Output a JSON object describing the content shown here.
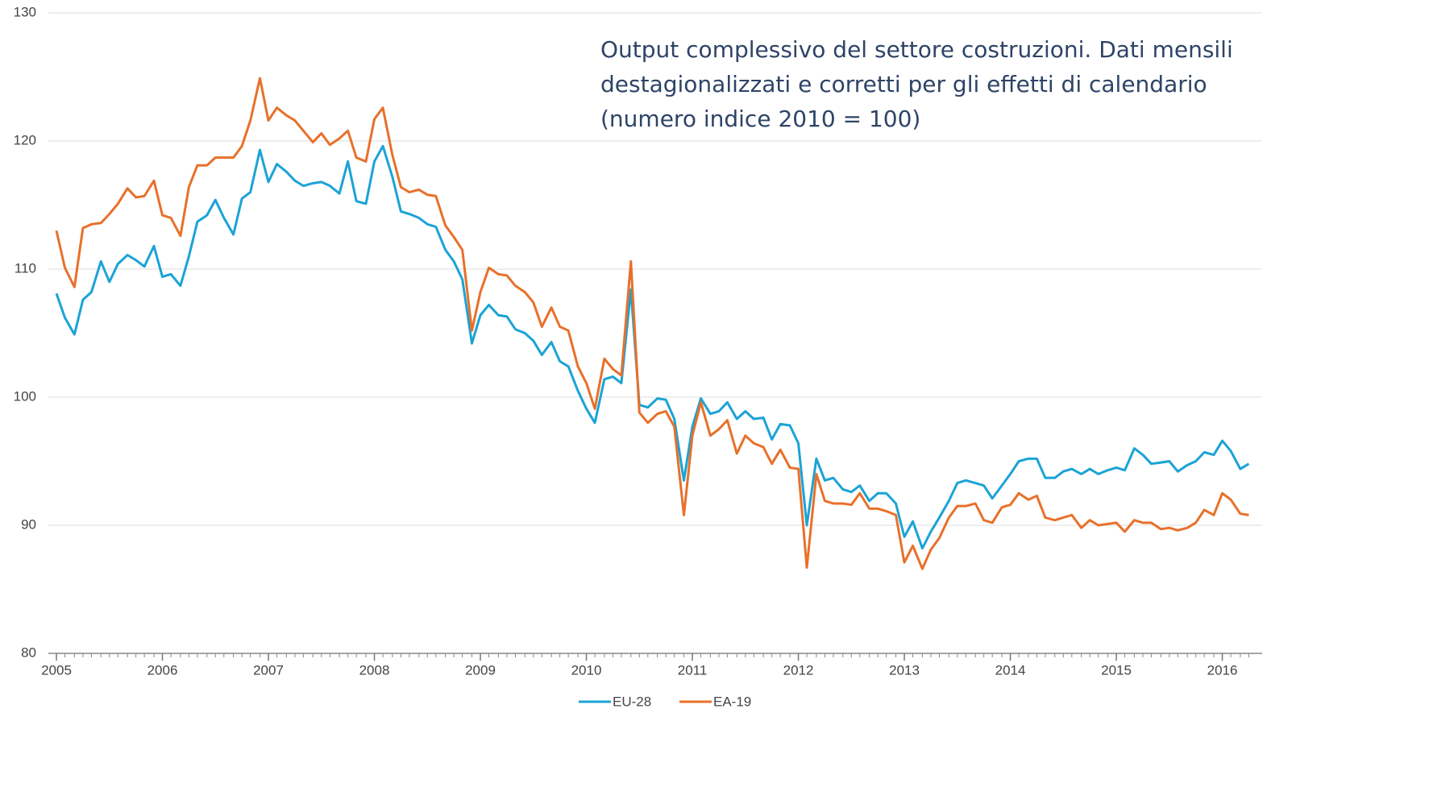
{
  "chart_data": {
    "type": "line",
    "annotation": "Output complessivo del settore costruzioni. Dati mensili destagionalizzati e corretti per gli effetti di calendario (numero indice 2010 = 100)",
    "x": [
      2005.0,
      2005.08,
      2005.17,
      2005.25,
      2005.33,
      2005.42,
      2005.5,
      2005.58,
      2005.67,
      2005.75,
      2005.83,
      2005.92,
      2006.0,
      2006.08,
      2006.17,
      2006.25,
      2006.33,
      2006.42,
      2006.5,
      2006.58,
      2006.67,
      2006.75,
      2006.83,
      2006.92,
      2007.0,
      2007.08,
      2007.17,
      2007.25,
      2007.33,
      2007.42,
      2007.5,
      2007.58,
      2007.67,
      2007.75,
      2007.83,
      2007.92,
      2008.0,
      2008.08,
      2008.17,
      2008.25,
      2008.33,
      2008.42,
      2008.5,
      2008.58,
      2008.67,
      2008.75,
      2008.83,
      2008.92,
      2009.0,
      2009.08,
      2009.17,
      2009.25,
      2009.33,
      2009.42,
      2009.5,
      2009.58,
      2009.67,
      2009.75,
      2009.83,
      2009.92,
      2010.0,
      2010.08,
      2010.17,
      2010.25,
      2010.33,
      2010.42,
      2010.5,
      2010.58,
      2010.67,
      2010.75,
      2010.83,
      2010.92,
      2011.0,
      2011.08,
      2011.17,
      2011.25,
      2011.33,
      2011.42,
      2011.5,
      2011.58,
      2011.67,
      2011.75,
      2011.83,
      2011.92,
      2012.0,
      2012.08,
      2012.17,
      2012.25,
      2012.33,
      2012.42,
      2012.5,
      2012.58,
      2012.67,
      2012.75,
      2012.83,
      2012.92,
      2013.0,
      2013.08,
      2013.17,
      2013.25,
      2013.33,
      2013.42,
      2013.5,
      2013.58,
      2013.67,
      2013.75,
      2013.83,
      2013.92,
      2014.0,
      2014.08,
      2014.17,
      2014.25,
      2014.33,
      2014.42,
      2014.5,
      2014.58,
      2014.67,
      2014.75,
      2014.83,
      2014.92,
      2015.0,
      2015.08,
      2015.17,
      2015.25,
      2015.33,
      2015.42,
      2015.5,
      2015.58,
      2015.67,
      2015.75,
      2015.83,
      2015.92,
      2016.0,
      2016.08,
      2016.17,
      2016.25
    ],
    "series": [
      {
        "name": "EU-28",
        "color": "#1ba3d6",
        "values": [
          108.1,
          106.2,
          104.9,
          107.6,
          108.2,
          110.6,
          109.0,
          110.4,
          111.1,
          110.7,
          110.2,
          111.8,
          109.4,
          109.6,
          108.7,
          111.0,
          113.7,
          114.2,
          115.4,
          114.0,
          112.7,
          115.5,
          116.0,
          119.3,
          116.8,
          118.2,
          117.6,
          116.9,
          116.5,
          116.7,
          116.8,
          116.5,
          115.9,
          118.4,
          115.3,
          115.1,
          118.4,
          119.6,
          117.2,
          114.5,
          114.3,
          114.0,
          113.5,
          113.3,
          111.5,
          110.6,
          109.2,
          104.2,
          106.4,
          107.2,
          106.4,
          106.3,
          105.3,
          105.0,
          104.4,
          103.3,
          104.3,
          102.8,
          102.4,
          100.5,
          99.1,
          98.0,
          101.4,
          101.6,
          101.1,
          108.4,
          99.4,
          99.2,
          99.9,
          99.8,
          98.3,
          93.5,
          97.7,
          99.9,
          98.7,
          98.9,
          99.6,
          98.3,
          98.9,
          98.3,
          98.4,
          96.7,
          97.9,
          97.8,
          96.4,
          90.0,
          95.2,
          93.5,
          93.7,
          92.8,
          92.6,
          93.1,
          91.9,
          92.5,
          92.5,
          91.7,
          89.1,
          90.3,
          88.2,
          89.5,
          90.6,
          91.9,
          93.3,
          93.5,
          93.3,
          93.1,
          92.1,
          93.1,
          94.0,
          95.0,
          95.2,
          95.2,
          93.7,
          93.7,
          94.2,
          94.4,
          94.0,
          94.4,
          94.0,
          94.3,
          94.5,
          94.3,
          96.0,
          95.5,
          94.8,
          94.9,
          95.0,
          94.2,
          94.7,
          95.0,
          95.7,
          95.5,
          96.6,
          95.8,
          94.4,
          94.8
        ]
      },
      {
        "name": "EA-19",
        "color": "#e8702a",
        "values": [
          113.0,
          110.1,
          108.6,
          113.2,
          113.5,
          113.6,
          114.3,
          115.1,
          116.3,
          115.6,
          115.7,
          116.9,
          114.2,
          114.0,
          112.6,
          116.4,
          118.1,
          118.1,
          118.7,
          118.7,
          118.7,
          119.6,
          121.6,
          124.9,
          121.6,
          122.6,
          122.0,
          121.6,
          120.8,
          119.9,
          120.6,
          119.7,
          120.2,
          120.8,
          118.7,
          118.4,
          121.7,
          122.6,
          118.9,
          116.4,
          116.0,
          116.2,
          115.8,
          115.7,
          113.4,
          112.5,
          111.5,
          105.2,
          108.2,
          110.1,
          109.6,
          109.5,
          108.7,
          108.2,
          107.4,
          105.5,
          107.0,
          105.5,
          105.2,
          102.4,
          101.1,
          99.1,
          103.0,
          102.2,
          101.7,
          110.6,
          98.8,
          98.0,
          98.7,
          98.9,
          97.7,
          90.8,
          97.0,
          99.6,
          97.0,
          97.5,
          98.2,
          95.6,
          97.0,
          96.4,
          96.1,
          94.8,
          95.9,
          94.5,
          94.4,
          86.7,
          94.0,
          91.9,
          91.7,
          91.7,
          91.6,
          92.5,
          91.3,
          91.3,
          91.1,
          90.8,
          87.1,
          88.4,
          86.6,
          88.1,
          89.0,
          90.6,
          91.5,
          91.5,
          91.7,
          90.4,
          90.2,
          91.4,
          91.6,
          92.5,
          92.0,
          92.3,
          90.6,
          90.4,
          90.6,
          90.8,
          89.8,
          90.4,
          90.0,
          90.1,
          90.2,
          89.5,
          90.4,
          90.2,
          90.2,
          89.7,
          89.8,
          89.6,
          89.8,
          90.2,
          91.2,
          90.8,
          92.5,
          92.0,
          90.9,
          90.8
        ]
      }
    ],
    "xlim": [
      2005,
      2016.3
    ],
    "xticks": [
      2005,
      2006,
      2007,
      2008,
      2009,
      2010,
      2011,
      2012,
      2013,
      2014,
      2015,
      2016
    ],
    "ylim": [
      80,
      130
    ],
    "yticks": [
      80,
      90,
      100,
      110,
      120,
      130
    ],
    "grid": true,
    "legend": "bottom"
  }
}
